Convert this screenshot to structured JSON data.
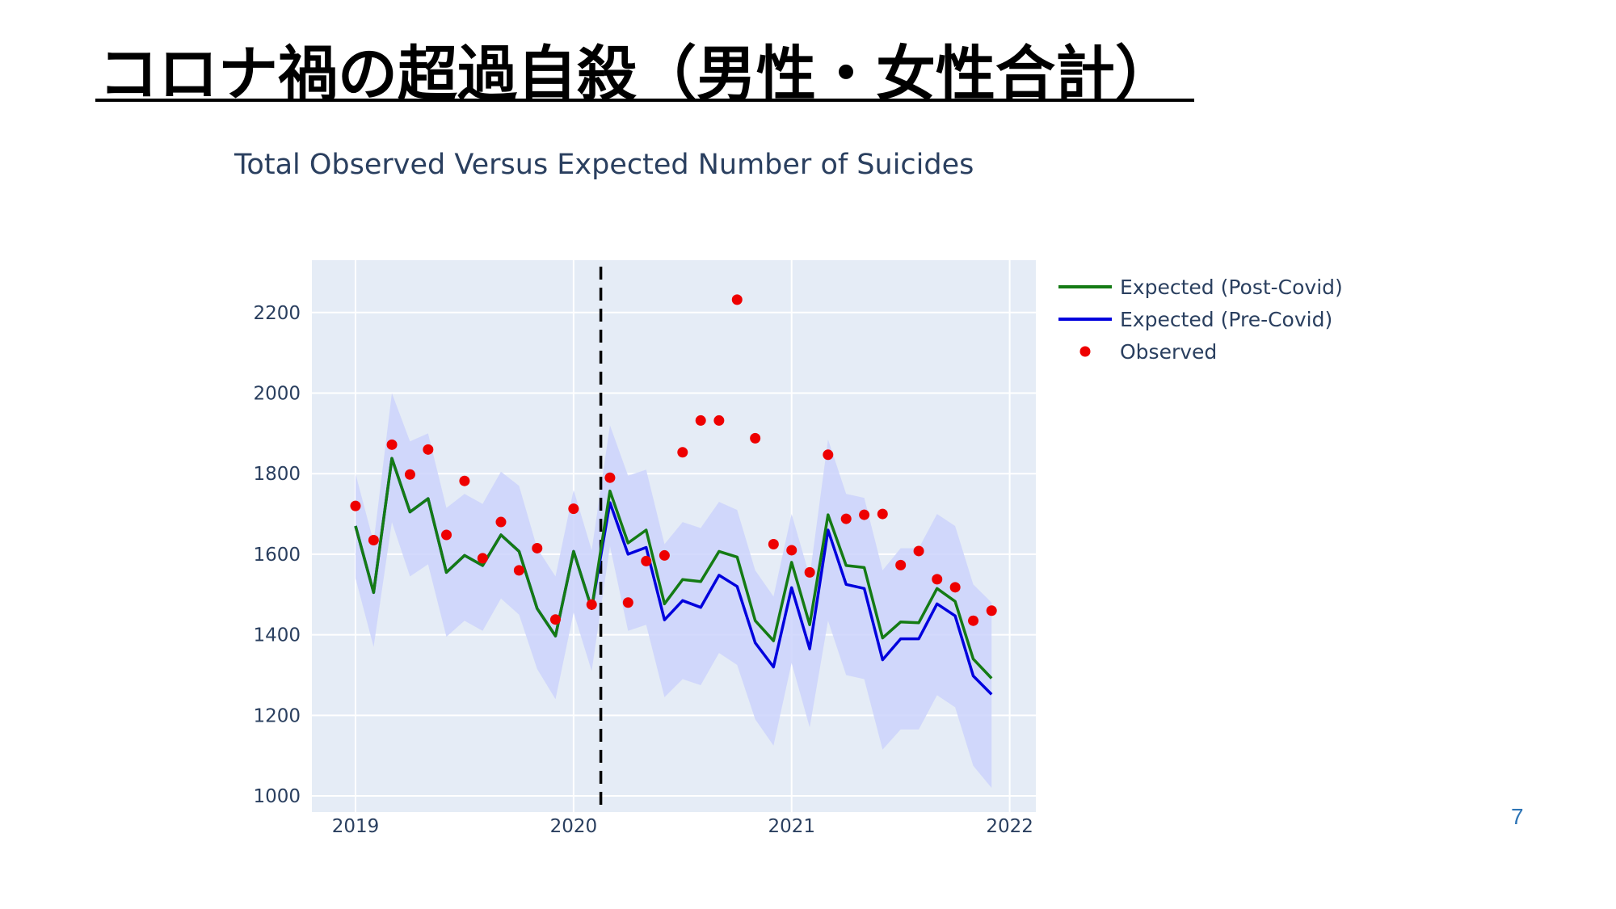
{
  "slide": {
    "title": "コロナ禍の超過自殺（男性・女性合計）",
    "page_number": "7"
  },
  "colors": {
    "plot_bg": "#e5ecf6",
    "grid": "#ffffff",
    "band": "#ccd4fb",
    "post_covid": "#147b14",
    "pre_covid": "#0000dd",
    "observed": "#ee0000",
    "marker_line": "#000000",
    "text": "#2a3f5f"
  },
  "chart_data": {
    "type": "line",
    "title": "Total Observed Versus Expected Number of Suicides",
    "xlabel": "",
    "ylabel": "",
    "xlim": [
      2018.8,
      2022.12
    ],
    "ylim": [
      960,
      2330
    ],
    "x_ticks": [
      2019,
      2020,
      2021,
      2022
    ],
    "x_tick_labels": [
      "2019",
      "2020",
      "2021",
      "2022"
    ],
    "y_ticks": [
      1000,
      1200,
      1400,
      1600,
      1800,
      2000,
      2200
    ],
    "y_tick_labels": [
      "1000",
      "1200",
      "1400",
      "1600",
      "1800",
      "2000",
      "2200"
    ],
    "grid": true,
    "legend_position": "top-right, outside plot",
    "vertical_marker": {
      "x": 2020.125,
      "style": "dashed"
    },
    "x": [
      2019.0,
      2019.083,
      2019.167,
      2019.25,
      2019.333,
      2019.417,
      2019.5,
      2019.583,
      2019.667,
      2019.75,
      2019.833,
      2019.917,
      2020.0,
      2020.083,
      2020.167,
      2020.25,
      2020.333,
      2020.417,
      2020.5,
      2020.583,
      2020.667,
      2020.75,
      2020.833,
      2020.917,
      2021.0,
      2021.083,
      2021.167,
      2021.25,
      2021.333,
      2021.417,
      2021.5,
      2021.583,
      2021.667,
      2021.75,
      2021.833,
      2021.917
    ],
    "series": [
      {
        "name": "Expected (Post-Covid)",
        "type": "line",
        "values": [
          1670,
          1505,
          1838,
          1705,
          1738,
          1555,
          1597,
          1572,
          1648,
          1607,
          1465,
          1397,
          1607,
          1465,
          1757,
          1628,
          1660,
          1477,
          1537,
          1532,
          1607,
          1593,
          1435,
          1385,
          1580,
          1425,
          1698,
          1572,
          1567,
          1392,
          1432,
          1430,
          1515,
          1483,
          1340,
          1292
        ]
      },
      {
        "name": "Expected (Pre-Covid)",
        "type": "line",
        "values": [
          1670,
          1505,
          1838,
          1705,
          1738,
          1555,
          1597,
          1572,
          1648,
          1607,
          1465,
          1397,
          1607,
          1465,
          1728,
          1600,
          1617,
          1437,
          1485,
          1468,
          1548,
          1520,
          1380,
          1320,
          1517,
          1365,
          1660,
          1525,
          1515,
          1338,
          1390,
          1390,
          1477,
          1447,
          1298,
          1252
        ]
      },
      {
        "name": "Observed",
        "type": "scatter",
        "values": [
          1720,
          1635,
          1872,
          1798,
          1860,
          1648,
          1782,
          1590,
          1680,
          1560,
          1615,
          1438,
          1713,
          1475,
          1790,
          1480,
          1583,
          1597,
          1853,
          1932,
          1932,
          2232,
          1888,
          1625,
          1610,
          1555,
          1847,
          1688,
          1698,
          1700,
          1573,
          1608,
          1538,
          1518,
          1435,
          1460
        ]
      }
    ],
    "band": {
      "upper": [
        1800,
        1630,
        2000,
        1880,
        1900,
        1715,
        1750,
        1725,
        1805,
        1770,
        1615,
        1545,
        1760,
        1610,
        1920,
        1795,
        1810,
        1625,
        1680,
        1665,
        1730,
        1710,
        1560,
        1495,
        1700,
        1545,
        1885,
        1750,
        1740,
        1560,
        1615,
        1615,
        1700,
        1670,
        1525,
        1480
      ],
      "lower": [
        1540,
        1370,
        1680,
        1545,
        1575,
        1395,
        1435,
        1410,
        1490,
        1450,
        1315,
        1240,
        1455,
        1310,
        1620,
        1410,
        1425,
        1245,
        1290,
        1275,
        1355,
        1325,
        1190,
        1125,
        1330,
        1170,
        1435,
        1300,
        1290,
        1115,
        1165,
        1165,
        1250,
        1220,
        1075,
        1020
      ]
    }
  }
}
